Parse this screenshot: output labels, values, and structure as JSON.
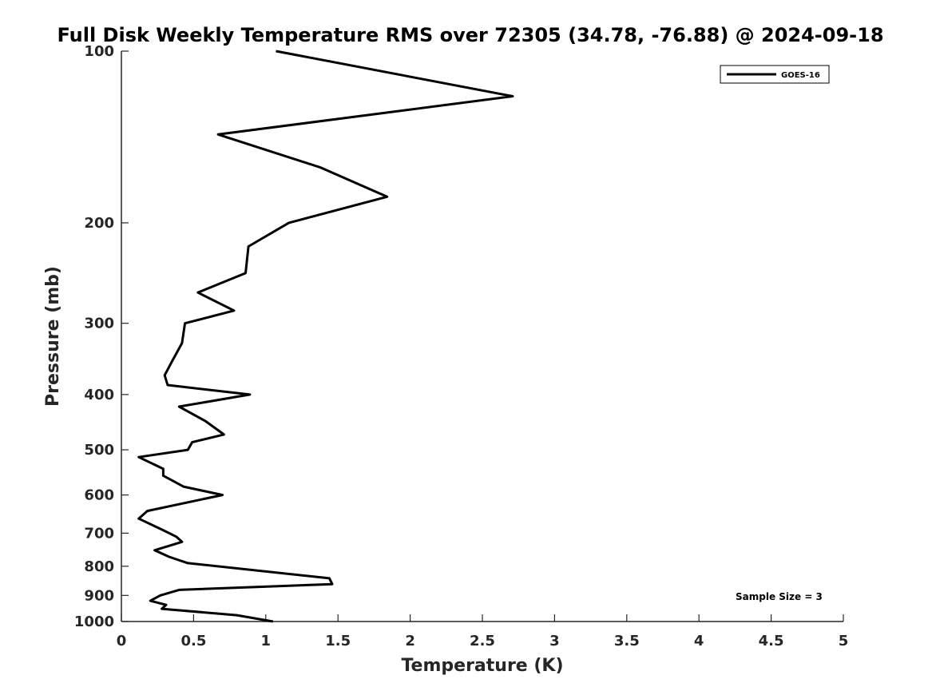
{
  "chart_data": {
    "type": "line",
    "title": "Full Disk Weekly Temperature RMS over 72305 (34.78, -76.88) @ 2024-09-18",
    "xlabel": "Temperature (K)",
    "ylabel": "Pressure (mb)",
    "xlim": [
      0,
      5
    ],
    "ylim": [
      100,
      1000
    ],
    "y_scale": "log",
    "y_reversed": true,
    "grid": false,
    "x_ticks": [
      "0",
      "0.5",
      "1",
      "1.5",
      "2",
      "2.5",
      "3",
      "3.5",
      "4",
      "4.5",
      "5"
    ],
    "y_ticks": [
      "100",
      "200",
      "300",
      "400",
      "500",
      "600",
      "700",
      "800",
      "900",
      "1000"
    ],
    "legend": {
      "placement": "top-right",
      "entries": [
        "GOES-16"
      ]
    },
    "annotation": "Sample Size = 3",
    "series": [
      {
        "name": "GOES-16",
        "color": "#000000",
        "x": [
          1.07,
          2.71,
          0.67,
          1.38,
          1.84,
          1.16,
          0.88,
          0.86,
          0.53,
          0.78,
          0.44,
          0.42,
          0.35,
          0.3,
          0.32,
          0.89,
          0.4,
          0.58,
          0.71,
          0.49,
          0.46,
          0.12,
          0.29,
          0.29,
          0.43,
          0.7,
          0.18,
          0.12,
          0.28,
          0.38,
          0.42,
          0.23,
          0.33,
          0.46,
          1.44,
          1.46,
          0.4,
          0.27,
          0.2,
          0.31,
          0.28,
          0.8,
          1.05
        ],
        "y": [
          100,
          120,
          140,
          160,
          180,
          200,
          220,
          245,
          265,
          285,
          300,
          325,
          350,
          370,
          385,
          400,
          420,
          445,
          470,
          485,
          500,
          515,
          540,
          555,
          580,
          600,
          640,
          660,
          690,
          710,
          725,
          750,
          770,
          790,
          840,
          860,
          880,
          900,
          920,
          935,
          950,
          975,
          1000
        ]
      }
    ]
  }
}
